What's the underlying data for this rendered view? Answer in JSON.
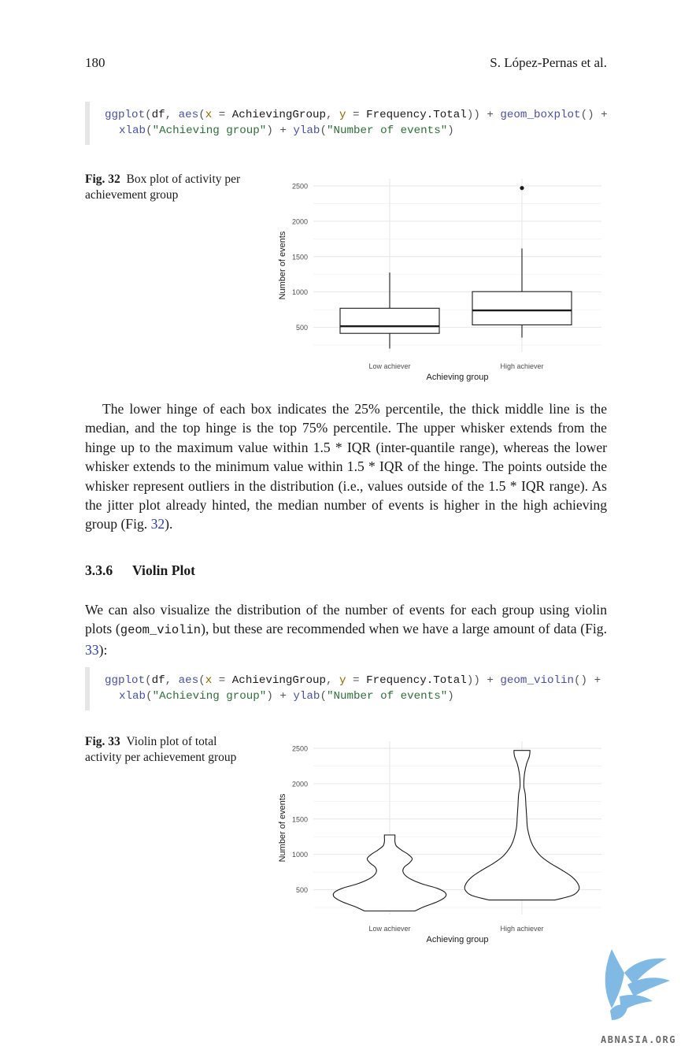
{
  "header": {
    "page_number": "180",
    "author": "S. López-Pernas et al."
  },
  "code1": {
    "line1": [
      {
        "t": "ggplot",
        "c": "fn"
      },
      {
        "t": "(",
        "c": "op"
      },
      {
        "t": "df",
        "c": "id"
      },
      {
        "t": ", ",
        "c": "op"
      },
      {
        "t": "aes",
        "c": "fn"
      },
      {
        "t": "(",
        "c": "op"
      },
      {
        "t": "x",
        "c": "arg"
      },
      {
        "t": " = ",
        "c": "op"
      },
      {
        "t": "AchievingGroup",
        "c": "id"
      },
      {
        "t": ", ",
        "c": "op"
      },
      {
        "t": "y",
        "c": "arg"
      },
      {
        "t": " = ",
        "c": "op"
      },
      {
        "t": "Frequency.Total",
        "c": "id"
      },
      {
        "t": ")) + ",
        "c": "op"
      },
      {
        "t": "geom_boxplot",
        "c": "fn"
      },
      {
        "t": "() +",
        "c": "op"
      }
    ],
    "line2": [
      {
        "t": "xlab",
        "c": "fn"
      },
      {
        "t": "(",
        "c": "op"
      },
      {
        "t": "\"Achieving group\"",
        "c": "str"
      },
      {
        "t": ") + ",
        "c": "op"
      },
      {
        "t": "ylab",
        "c": "fn"
      },
      {
        "t": "(",
        "c": "op"
      },
      {
        "t": "\"Number of events\"",
        "c": "str"
      },
      {
        "t": ")",
        "c": "op"
      }
    ]
  },
  "fig32": {
    "label": "Fig. 32",
    "text": "Box plot of activity per achievement group"
  },
  "paragraph1": "The lower hinge of each box indicates the 25% percentile, the thick middle line is the median, and the top hinge is the top 75% percentile. The upper whisker extends from the hinge up to the maximum value within 1.5 * IQR (inter-quantile range), whereas the lower whisker extends to the minimum value within 1.5 * IQR of the hinge. The points outside the whisker represent outliers in the distribution (i.e., values outside of the 1.5 * IQR range). As the jitter plot already hinted, the median number of events is higher in the high achieving group (Fig. ",
  "paragraph1_ref": "32",
  "paragraph1_end": ").",
  "section": {
    "number": "3.3.6",
    "title": "Violin Plot"
  },
  "paragraph2_a": "We can also visualize the distribution of the number of events for each group using violin plots (",
  "paragraph2_code": "geom_violin",
  "paragraph2_b": "), but these are recommended when we have a large amount of data (Fig. ",
  "paragraph2_ref": "33",
  "paragraph2_end": "):",
  "code2": {
    "line1": [
      {
        "t": "ggplot",
        "c": "fn"
      },
      {
        "t": "(",
        "c": "op"
      },
      {
        "t": "df",
        "c": "id"
      },
      {
        "t": ", ",
        "c": "op"
      },
      {
        "t": "aes",
        "c": "fn"
      },
      {
        "t": "(",
        "c": "op"
      },
      {
        "t": "x",
        "c": "arg"
      },
      {
        "t": " = ",
        "c": "op"
      },
      {
        "t": "AchievingGroup",
        "c": "id"
      },
      {
        "t": ", ",
        "c": "op"
      },
      {
        "t": "y",
        "c": "arg"
      },
      {
        "t": " = ",
        "c": "op"
      },
      {
        "t": "Frequency.Total",
        "c": "id"
      },
      {
        "t": ")) + ",
        "c": "op"
      },
      {
        "t": "geom_violin",
        "c": "fn"
      },
      {
        "t": "() +",
        "c": "op"
      }
    ],
    "line2": [
      {
        "t": "xlab",
        "c": "fn"
      },
      {
        "t": "(",
        "c": "op"
      },
      {
        "t": "\"Achieving group\"",
        "c": "str"
      },
      {
        "t": ") + ",
        "c": "op"
      },
      {
        "t": "ylab",
        "c": "fn"
      },
      {
        "t": "(",
        "c": "op"
      },
      {
        "t": "\"Number of events\"",
        "c": "str"
      },
      {
        "t": ")",
        "c": "op"
      }
    ]
  },
  "fig33": {
    "label": "Fig. 33",
    "text": "Violin plot of total activity per achievement group"
  },
  "colors": {
    "code_fn": "#4a50a0",
    "code_str": "#2f6e3a",
    "code_arg": "#8a6a00",
    "link": "#2b3fb0",
    "grid": "#ebebeb",
    "watermark": "#6aaee0"
  },
  "watermark": {
    "text": "ABNASIA.ORG",
    "icon": "griffin-logo-icon"
  },
  "chart_data": [
    {
      "type": "box",
      "categories": [
        "Low achiever",
        "High achiever"
      ],
      "xlabel": "Achieving group",
      "ylabel": "Number of events",
      "ylim": [
        150,
        2600
      ],
      "yticks": [
        500,
        1000,
        1500,
        2000,
        2500
      ],
      "grid": true,
      "boxes": [
        {
          "category": "Low achiever",
          "whisker_low": 200,
          "q1": 415,
          "median": 515,
          "q3": 770,
          "whisker_high": 1275,
          "outliers": []
        },
        {
          "category": "High achiever",
          "whisker_low": 355,
          "q1": 535,
          "median": 740,
          "q3": 1005,
          "whisker_high": 1615,
          "outliers": [
            2470
          ]
        }
      ]
    },
    {
      "type": "violin",
      "categories": [
        "Low achiever",
        "High achiever"
      ],
      "xlabel": "Achieving group",
      "ylabel": "Number of events",
      "ylim": [
        150,
        2600
      ],
      "yticks": [
        500,
        1000,
        1500,
        2000,
        2500
      ],
      "grid": true,
      "violins": [
        {
          "category": "Low achiever",
          "min": 200,
          "max": 1275,
          "profile": [
            [
              200,
              0.38
            ],
            [
              260,
              0.52
            ],
            [
              330,
              0.72
            ],
            [
              400,
              0.84
            ],
            [
              460,
              0.84
            ],
            [
              520,
              0.72
            ],
            [
              580,
              0.5
            ],
            [
              640,
              0.34
            ],
            [
              700,
              0.24
            ],
            [
              760,
              0.2
            ],
            [
              820,
              0.22
            ],
            [
              880,
              0.3
            ],
            [
              940,
              0.34
            ],
            [
              1000,
              0.28
            ],
            [
              1060,
              0.18
            ],
            [
              1120,
              0.1
            ],
            [
              1180,
              0.08
            ],
            [
              1240,
              0.08
            ],
            [
              1275,
              0.08
            ]
          ]
        },
        {
          "category": "High achiever",
          "min": 355,
          "max": 2470,
          "profile": [
            [
              355,
              0.5
            ],
            [
              420,
              0.76
            ],
            [
              500,
              0.86
            ],
            [
              580,
              0.85
            ],
            [
              680,
              0.76
            ],
            [
              780,
              0.6
            ],
            [
              880,
              0.42
            ],
            [
              980,
              0.28
            ],
            [
              1100,
              0.18
            ],
            [
              1200,
              0.13
            ],
            [
              1300,
              0.1
            ],
            [
              1400,
              0.08
            ],
            [
              1550,
              0.07
            ],
            [
              1700,
              0.06
            ],
            [
              1850,
              0.05
            ],
            [
              1950,
              0.03
            ],
            [
              2050,
              0.03
            ],
            [
              2150,
              0.04
            ],
            [
              2280,
              0.07
            ],
            [
              2380,
              0.11
            ],
            [
              2440,
              0.12
            ],
            [
              2470,
              0.12
            ]
          ]
        }
      ]
    }
  ]
}
